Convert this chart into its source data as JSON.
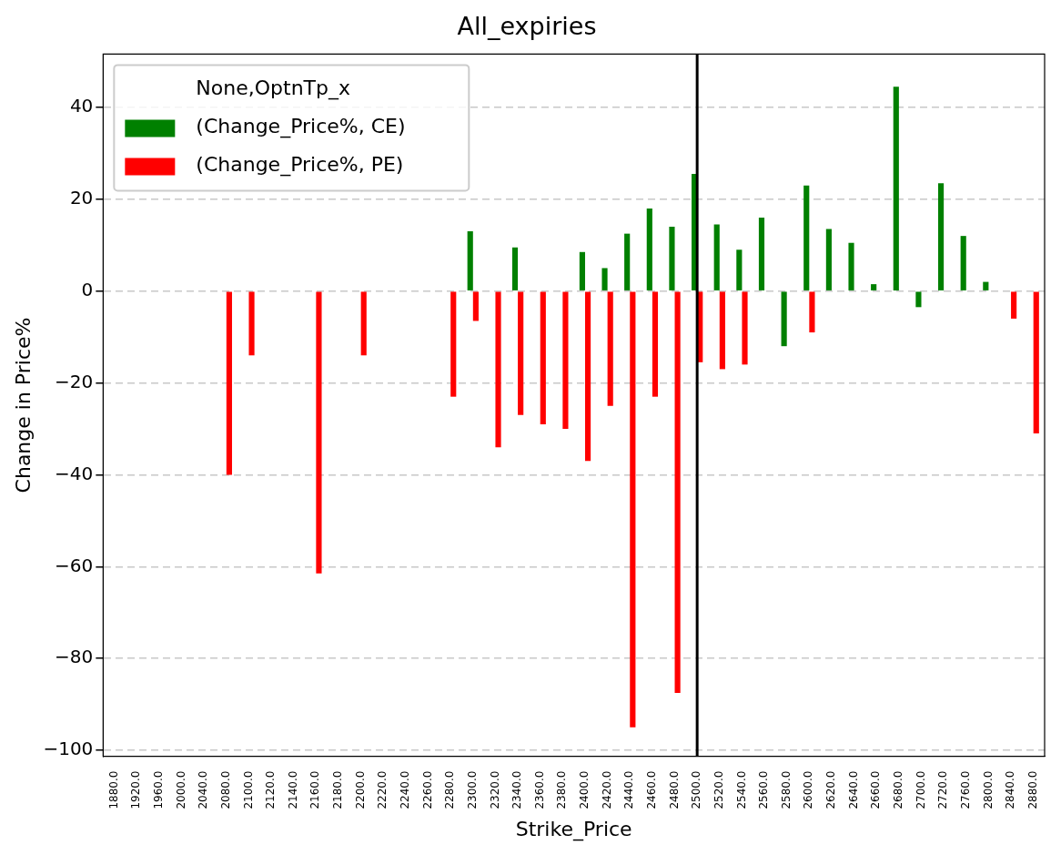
{
  "chart_data": {
    "type": "bar",
    "title": "All_expiries",
    "xlabel": "Strike_Price",
    "ylabel": "Change in Price%",
    "legend_title": "None,OptnTp_x",
    "categories": [
      "1880.0",
      "1920.0",
      "1960.0",
      "2000.0",
      "2040.0",
      "2080.0",
      "2100.0",
      "2120.0",
      "2140.0",
      "2160.0",
      "2180.0",
      "2200.0",
      "2220.0",
      "2240.0",
      "2260.0",
      "2280.0",
      "2300.0",
      "2320.0",
      "2340.0",
      "2360.0",
      "2380.0",
      "2400.0",
      "2420.0",
      "2440.0",
      "2460.0",
      "2480.0",
      "2500.0",
      "2520.0",
      "2540.0",
      "2560.0",
      "2580.0",
      "2600.0",
      "2620.0",
      "2640.0",
      "2660.0",
      "2680.0",
      "2700.0",
      "2720.0",
      "2760.0",
      "2800.0",
      "2840.0",
      "2880.0"
    ],
    "series": [
      {
        "name": "(Change_Price%, CE)",
        "color": "#008000",
        "values": [
          null,
          null,
          null,
          null,
          null,
          null,
          null,
          null,
          null,
          null,
          null,
          null,
          null,
          null,
          null,
          null,
          13,
          null,
          9.5,
          null,
          null,
          8.5,
          5,
          12.5,
          18,
          14,
          25.5,
          14.5,
          9,
          16,
          -12,
          23,
          13.5,
          10.5,
          1.5,
          44.5,
          -3.5,
          23.5,
          12,
          2,
          null,
          null
        ]
      },
      {
        "name": "(Change_Price%, PE)",
        "color": "#ff0000",
        "values": [
          null,
          null,
          null,
          null,
          null,
          -40,
          -14,
          null,
          null,
          -61.5,
          null,
          -14,
          null,
          null,
          null,
          -23,
          -6.5,
          -34,
          -27,
          -29,
          -30,
          -37,
          -25,
          -95,
          -23,
          -87.5,
          -15.5,
          -17,
          -16,
          null,
          null,
          -9,
          null,
          null,
          null,
          null,
          null,
          null,
          null,
          null,
          -6,
          -31
        ]
      }
    ],
    "ylim": [
      -101.3,
      51.6
    ],
    "yticks": [
      -100,
      -80,
      -60,
      -40,
      -20,
      0,
      20,
      40
    ],
    "grid": "y",
    "legend": "top left",
    "ref_lines": [
      {
        "axis": "x",
        "value": "2500.0",
        "color": "#000000"
      }
    ]
  }
}
